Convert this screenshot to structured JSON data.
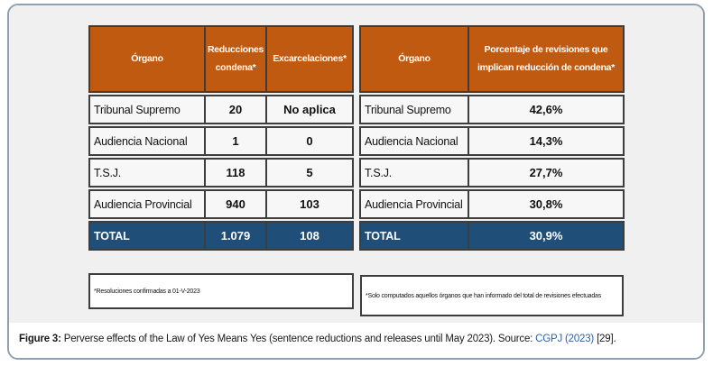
{
  "t1": {
    "headers": [
      "Órgano",
      "Reducciones condena*",
      "Excarcelaciones*"
    ],
    "rows": [
      [
        "Tribunal Supremo",
        "20",
        "No aplica"
      ],
      [
        "Audiencia Nacional",
        "1",
        "0"
      ],
      [
        "T.S.J.",
        "118",
        "5"
      ],
      [
        "Audiencia Provincial",
        "940",
        "103"
      ]
    ],
    "total": [
      "TOTAL",
      "1.079",
      "108"
    ],
    "footnote": "*Resoluciones confirmadas a 01-V-2023"
  },
  "t2": {
    "headers": [
      "Órgano",
      "Porcentaje de revisiones que implican reducción de condena*"
    ],
    "rows": [
      [
        "Tribunal Supremo",
        "42,6%"
      ],
      [
        "Audiencia Nacional",
        "14,3%"
      ],
      [
        "T.S.J.",
        "27,7%"
      ],
      [
        "Audiencia Provincial",
        "30,8%"
      ]
    ],
    "total": [
      "TOTAL",
      "30,9%"
    ],
    "footnote": "*Solo computados aquellos órganos que han informado del total de revisiones efectuadas"
  },
  "caption": {
    "label": "Figure 3:",
    "body": "Perverse effects of the Law of Yes Means Yes (sentence reductions and releases until May 2023). Source:",
    "source_link": "CGPJ (2023)",
    "citation": "[29]."
  },
  "colors": {
    "table_header_bg": "#C05A11",
    "total_row_bg": "#1F4E79",
    "panel_bg": "#F0F0F0",
    "frame_border": "#8FA0B0",
    "link_blue": "#2B63A8",
    "cell_border": "#3D3D3D"
  }
}
